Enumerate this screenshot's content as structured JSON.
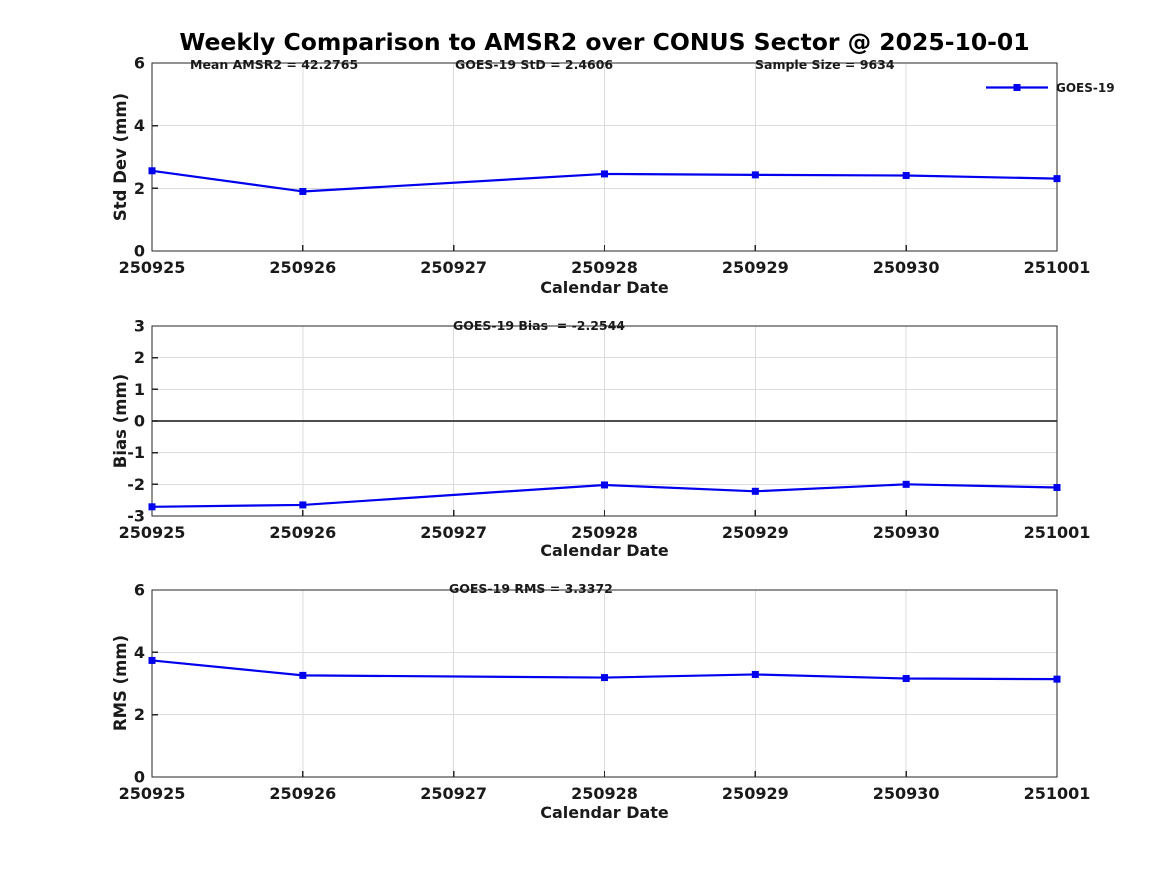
{
  "title": "Weekly Comparison to AMSR2 over CONUS Sector @ 2025-10-01",
  "legend": {
    "label": "GOES-19"
  },
  "colors": {
    "line": "#0000ee",
    "grid": "#dcdcdc",
    "axis": "#262626",
    "zero_line": "#4d4d4d",
    "text": "#1a1a1a"
  },
  "chart_data": [
    {
      "type": "line",
      "title": "",
      "xlabel": "Calendar Date",
      "ylabel": "Std Dev (mm)",
      "categories": [
        "250925",
        "250926",
        "250927",
        "250928",
        "250929",
        "250930",
        "251001"
      ],
      "ylim": [
        0,
        6
      ],
      "yticks": [
        0,
        2,
        4,
        6
      ],
      "grid": true,
      "zero_line": false,
      "legend_position": "northeast",
      "annotations": [
        "Mean AMSR2 = 42.2765",
        "GOES-19 StD = 2.4606",
        "Sample Size = 9634"
      ],
      "series": [
        {
          "name": "GOES-19",
          "marker": "square",
          "x": [
            "250925",
            "250926",
            "250928",
            "250929",
            "250930",
            "251001"
          ],
          "values": [
            2.56,
            1.9,
            2.46,
            2.43,
            2.41,
            2.31
          ]
        }
      ]
    },
    {
      "type": "line",
      "title": "",
      "xlabel": "Calendar Date",
      "ylabel": "Bias (mm)",
      "categories": [
        "250925",
        "250926",
        "250927",
        "250928",
        "250929",
        "250930",
        "251001"
      ],
      "ylim": [
        -3,
        3
      ],
      "yticks": [
        -3,
        -2,
        -1,
        0,
        1,
        2,
        3
      ],
      "grid": true,
      "zero_line": true,
      "annotations": [
        "GOES-19 Bias  = -2.2544"
      ],
      "series": [
        {
          "name": "GOES-19",
          "marker": "square",
          "x": [
            "250925",
            "250926",
            "250928",
            "250929",
            "250930",
            "251001"
          ],
          "values": [
            -2.71,
            -2.65,
            -2.02,
            -2.22,
            -2.0,
            -2.1
          ]
        }
      ]
    },
    {
      "type": "line",
      "title": "",
      "xlabel": "Calendar Date",
      "ylabel": "RMS (mm)",
      "categories": [
        "250925",
        "250926",
        "250927",
        "250928",
        "250929",
        "250930",
        "251001"
      ],
      "ylim": [
        0,
        6
      ],
      "yticks": [
        0,
        2,
        4,
        6
      ],
      "grid": true,
      "zero_line": false,
      "annotations": [
        "GOES-19 RMS = 3.3372"
      ],
      "series": [
        {
          "name": "GOES-19",
          "marker": "square",
          "x": [
            "250925",
            "250926",
            "250928",
            "250929",
            "250930",
            "251001"
          ],
          "values": [
            3.74,
            3.26,
            3.19,
            3.29,
            3.16,
            3.14
          ]
        }
      ]
    }
  ]
}
